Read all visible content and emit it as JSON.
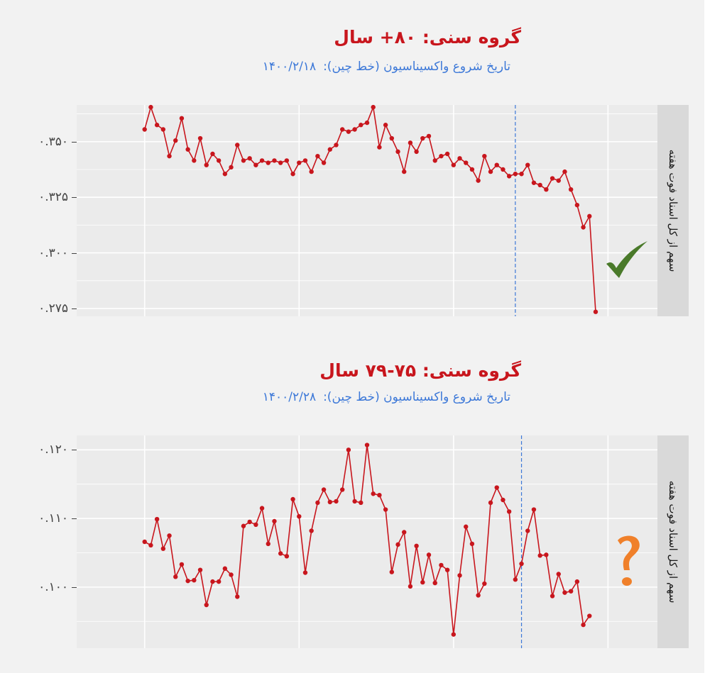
{
  "colors": {
    "line": "#c8161d",
    "title": "#c8161d",
    "subtitle": "#3c78d8",
    "vline": "#3c78d8",
    "check": "#4a7a2a",
    "question": "#f0802a"
  },
  "chart_data": [
    {
      "type": "line",
      "title": "گروه سنی: ۸۰+ سال",
      "subtitle_label": "تاریخ شروع واکسیناسیون (خط چین):",
      "subtitle_date": "۱۴۰۰/۲/۱۸",
      "ylabel": "سهم از کل اسناد فوت هفته",
      "ylim": [
        0.2715,
        0.3665
      ],
      "yticks": [
        0.275,
        0.3,
        0.325,
        0.35
      ],
      "ytick_labels": [
        "۰.۲۷۵",
        "۰.۳۰۰",
        "۰.۳۲۵",
        "۰.۳۵۰"
      ],
      "xlim": [
        -11,
        83
      ],
      "vline_x": 60,
      "grid": true,
      "marker": "check",
      "values": [
        0.3555,
        0.3655,
        0.3575,
        0.3555,
        0.3435,
        0.3505,
        0.3605,
        0.3465,
        0.3415,
        0.3515,
        0.3395,
        0.3445,
        0.3415,
        0.3355,
        0.3385,
        0.3485,
        0.3415,
        0.3425,
        0.3395,
        0.3415,
        0.3405,
        0.3415,
        0.3405,
        0.3415,
        0.3355,
        0.3405,
        0.3415,
        0.3365,
        0.3435,
        0.3405,
        0.3465,
        0.3485,
        0.3555,
        0.3545,
        0.3555,
        0.3575,
        0.3585,
        0.3655,
        0.3475,
        0.3575,
        0.3515,
        0.3455,
        0.3365,
        0.3495,
        0.3455,
        0.3515,
        0.3525,
        0.3415,
        0.3435,
        0.3445,
        0.3395,
        0.3425,
        0.3405,
        0.3375,
        0.3325,
        0.3435,
        0.3365,
        0.3395,
        0.3375,
        0.3345,
        0.3355,
        0.3355,
        0.3395,
        0.3315,
        0.3305,
        0.3285,
        0.3335,
        0.3325,
        0.3365,
        0.3285,
        0.3215,
        0.3115,
        0.3165,
        0.2735
      ]
    },
    {
      "type": "line",
      "title": "گروه سنی: ۷۵-۷۹ سال",
      "subtitle_label": "تاریخ شروع واکسیناسیون (خط چین):",
      "subtitle_date": "۱۴۰۰/۲/۲۸",
      "ylabel": "سهم از کل اسناد فوت هفته",
      "ylim": [
        0.0911,
        0.1221
      ],
      "yticks": [
        0.1,
        0.11,
        0.12
      ],
      "ytick_labels": [
        "۰.۱۰۰",
        "۰.۱۱۰",
        "۰.۱۲۰"
      ],
      "xlim": [
        -11,
        83
      ],
      "vline_x": 61,
      "grid": true,
      "marker": "question",
      "values": [
        0.1066,
        0.1061,
        0.1099,
        0.1056,
        0.1075,
        0.1015,
        0.1033,
        0.1009,
        0.101,
        0.1025,
        0.0974,
        0.1008,
        0.1008,
        0.1027,
        0.1018,
        0.0986,
        0.1089,
        0.1095,
        0.1091,
        0.1115,
        0.1063,
        0.1096,
        0.1049,
        0.1045,
        0.1128,
        0.1103,
        0.1021,
        0.1082,
        0.1123,
        0.1142,
        0.1124,
        0.1125,
        0.1142,
        0.12,
        0.1125,
        0.1123,
        0.1207,
        0.1136,
        0.1134,
        0.1113,
        0.1022,
        0.1062,
        0.108,
        0.1001,
        0.106,
        0.1007,
        0.1047,
        0.1006,
        0.1032,
        0.1025,
        0.0931,
        0.1017,
        0.1088,
        0.1063,
        0.0988,
        0.1005,
        0.1123,
        0.1145,
        0.1127,
        0.111,
        0.1011,
        0.1034,
        0.1082,
        0.1113,
        0.1046,
        0.1047,
        0.0987,
        0.1019,
        0.0992,
        0.0994,
        0.1008,
        0.0945,
        0.0958
      ]
    }
  ]
}
